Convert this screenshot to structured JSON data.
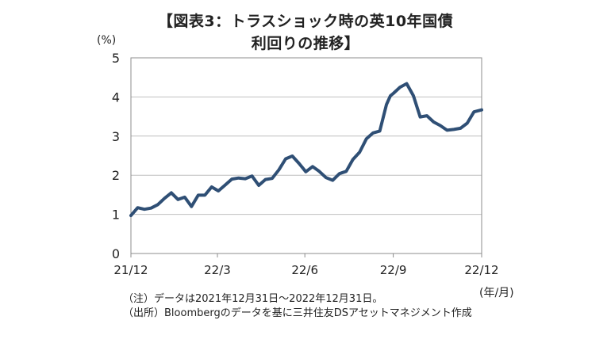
{
  "title": {
    "line1": "【図表3：トラスショック時の英10年国債",
    "line2": "利回りの推移】"
  },
  "notes": {
    "note1": "（注）データは2021年12月31日～2022年12月31日。",
    "note2": "（出所）Bloombergのデータを基に三井住友DSアセットマネジメント作成"
  },
  "colors": {
    "line": "#2f4f75",
    "grid": "#bfbfbf",
    "frame": "#8c8c8c"
  },
  "chart_data": {
    "type": "line",
    "title": "【図表3：トラスショック時の英10年国債利回りの推移】",
    "ylabel": "(%)",
    "xlabel": "(年/月)",
    "ylim": [
      0,
      5
    ],
    "yticks": [
      0,
      1,
      2,
      3,
      4,
      5
    ],
    "xticks": [
      {
        "label": "21/12",
        "x": "2021-12-31"
      },
      {
        "label": "22/3",
        "x": "2022-03-31"
      },
      {
        "label": "22/6",
        "x": "2022-06-30"
      },
      {
        "label": "22/9",
        "x": "2022-09-30"
      },
      {
        "label": "22/12",
        "x": "2022-12-31"
      }
    ],
    "grid": true,
    "series": [
      {
        "x": [
          "2021-12-31",
          "2022-01-07",
          "2022-01-14",
          "2022-01-21",
          "2022-01-28",
          "2022-02-04",
          "2022-02-11",
          "2022-02-18",
          "2022-02-25",
          "2022-03-04",
          "2022-03-11",
          "2022-03-18",
          "2022-03-25",
          "2022-04-01",
          "2022-04-08",
          "2022-04-15",
          "2022-04-22",
          "2022-04-29",
          "2022-05-06",
          "2022-05-13",
          "2022-05-20",
          "2022-05-27",
          "2022-06-03",
          "2022-06-10",
          "2022-06-17",
          "2022-06-24",
          "2022-07-01",
          "2022-07-08",
          "2022-07-15",
          "2022-07-22",
          "2022-07-29",
          "2022-08-05",
          "2022-08-12",
          "2022-08-19",
          "2022-08-26",
          "2022-09-02",
          "2022-09-09",
          "2022-09-16",
          "2022-09-23",
          "2022-09-27",
          "2022-09-30",
          "2022-10-07",
          "2022-10-14",
          "2022-10-21",
          "2022-10-28",
          "2022-11-04",
          "2022-11-11",
          "2022-11-18",
          "2022-11-25",
          "2022-12-02",
          "2022-12-09",
          "2022-12-16",
          "2022-12-23",
          "2022-12-31"
        ],
        "values": [
          0.97,
          1.17,
          1.13,
          1.16,
          1.25,
          1.41,
          1.55,
          1.38,
          1.44,
          1.2,
          1.49,
          1.49,
          1.7,
          1.6,
          1.75,
          1.9,
          1.93,
          1.91,
          1.98,
          1.74,
          1.89,
          1.92,
          2.14,
          2.42,
          2.49,
          2.3,
          2.09,
          2.22,
          2.1,
          1.94,
          1.87,
          2.04,
          2.1,
          2.4,
          2.59,
          2.93,
          3.08,
          3.13,
          3.81,
          4.03,
          4.09,
          4.25,
          4.34,
          4.03,
          3.49,
          3.52,
          3.36,
          3.27,
          3.15,
          3.17,
          3.2,
          3.33,
          3.62,
          3.67
        ]
      }
    ]
  }
}
